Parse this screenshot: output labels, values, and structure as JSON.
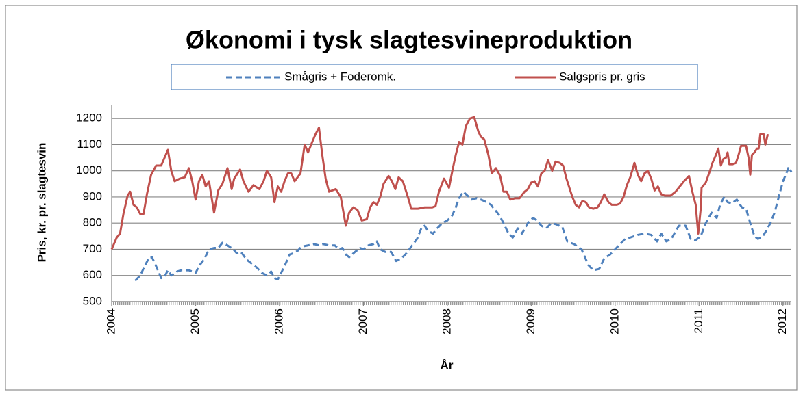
{
  "chart_data": {
    "type": "line",
    "title": "Økonomi i tysk slagtesvineproduktion",
    "xlabel": "År",
    "ylabel": "Pris, kr. pr. slagtesvin",
    "xlim": [
      2004,
      2012.1
    ],
    "xticks": [
      2004,
      2005,
      2006,
      2007,
      2008,
      2009,
      2010,
      2011,
      2012
    ],
    "ylim": [
      500,
      1250
    ],
    "yticks": [
      500,
      600,
      700,
      800,
      900,
      1000,
      1100,
      1200
    ],
    "grid": true,
    "legend": "top",
    "series": [
      {
        "name": "Smågris + Foderomk.",
        "color": "#4f81bd",
        "style": "dashed",
        "x": [
          2004.28,
          2004.34,
          2004.4,
          2004.45,
          2004.48,
          2004.53,
          2004.59,
          2004.63,
          2004.67,
          2004.71,
          2004.78,
          2004.83,
          2004.92,
          2005.0,
          2005.05,
          2005.1,
          2005.16,
          2005.22,
          2005.27,
          2005.32,
          2005.38,
          2005.45,
          2005.49,
          2005.54,
          2005.61,
          2005.67,
          2005.73,
          2005.79,
          2005.85,
          2005.9,
          2005.94,
          2005.98,
          2006.02,
          2006.08,
          2006.12,
          2006.17,
          2006.22,
          2006.26,
          2006.34,
          2006.41,
          2006.47,
          2006.52,
          2006.59,
          2006.66,
          2006.71,
          2006.75,
          2006.79,
          2006.83,
          2006.9,
          2006.96,
          2007.0,
          2007.06,
          2007.12,
          2007.16,
          2007.2,
          2007.26,
          2007.33,
          2007.39,
          2007.45,
          2007.5,
          2007.57,
          2007.64,
          2007.69,
          2007.73,
          2007.77,
          2007.83,
          2007.88,
          2007.94,
          2008.0,
          2008.06,
          2008.1,
          2008.14,
          2008.19,
          2008.24,
          2008.29,
          2008.35,
          2008.4,
          2008.47,
          2008.52,
          2008.57,
          2008.62,
          2008.67,
          2008.73,
          2008.78,
          2008.84,
          2008.89,
          2008.96,
          2009.02,
          2009.07,
          2009.12,
          2009.18,
          2009.24,
          2009.3,
          2009.37,
          2009.43,
          2009.51,
          2009.6,
          2009.68,
          2009.74,
          2009.81,
          2009.87,
          2009.94,
          2010.0,
          2010.06,
          2010.12,
          2010.18,
          2010.27,
          2010.35,
          2010.43,
          2010.5,
          2010.55,
          2010.61,
          2010.67,
          2010.76,
          2010.84,
          2010.9,
          2010.96,
          2011.02,
          2011.08,
          2011.15,
          2011.21,
          2011.25,
          2011.3,
          2011.34,
          2011.39,
          2011.45,
          2011.51,
          2011.56,
          2011.61,
          2011.66,
          2011.7,
          2011.75,
          2011.8,
          2011.85,
          2011.9,
          2011.95,
          2012.0,
          2012.04,
          2012.07,
          2012.1
        ],
        "values": [
          580,
          600,
          640,
          670,
          670,
          635,
          590,
          595,
          620,
          600,
          615,
          620,
          620,
          610,
          640,
          660,
          700,
          705,
          705,
          725,
          715,
          700,
          685,
          690,
          660,
          645,
          630,
          610,
          600,
          615,
          590,
          585,
          610,
          650,
          680,
          685,
          695,
          710,
          715,
          720,
          715,
          720,
          715,
          715,
          700,
          705,
          680,
          670,
          690,
          705,
          700,
          715,
          720,
          730,
          700,
          690,
          690,
          655,
          665,
          680,
          710,
          740,
          780,
          790,
          770,
          760,
          780,
          800,
          810,
          830,
          860,
          895,
          920,
          905,
          890,
          895,
          890,
          880,
          870,
          850,
          830,
          800,
          760,
          745,
          780,
          760,
          800,
          820,
          810,
          790,
          780,
          800,
          795,
          785,
          730,
          720,
          700,
          640,
          620,
          625,
          665,
          680,
          700,
          720,
          740,
          745,
          755,
          760,
          755,
          730,
          760,
          730,
          740,
          790,
          790,
          740,
          735,
          750,
          800,
          840,
          820,
          870,
          900,
          880,
          875,
          890,
          860,
          855,
          800,
          750,
          740,
          745,
          770,
          800,
          840,
          900,
          960,
          990,
          1015,
          995
        ]
      },
      {
        "name": "Salgspris pr. gris",
        "color": "#c0504d",
        "style": "solid",
        "x": [
          2004.0,
          2004.06,
          2004.1,
          2004.14,
          2004.19,
          2004.22,
          2004.26,
          2004.3,
          2004.34,
          2004.38,
          2004.42,
          2004.47,
          2004.53,
          2004.59,
          2004.63,
          2004.67,
          2004.71,
          2004.75,
          2004.81,
          2004.87,
          2004.92,
          2004.96,
          2005.0,
          2005.04,
          2005.08,
          2005.12,
          2005.16,
          2005.22,
          2005.27,
          2005.32,
          2005.38,
          2005.43,
          2005.46,
          2005.53,
          2005.57,
          2005.63,
          2005.69,
          2005.76,
          2005.81,
          2005.85,
          2005.9,
          2005.94,
          2005.98,
          2006.02,
          2006.06,
          2006.1,
          2006.14,
          2006.18,
          2006.25,
          2006.3,
          2006.34,
          2006.39,
          2006.43,
          2006.47,
          2006.51,
          2006.55,
          2006.59,
          2006.67,
          2006.73,
          2006.79,
          2006.83,
          2006.88,
          2006.93,
          2006.98,
          2007.04,
          2007.08,
          2007.12,
          2007.16,
          2007.2,
          2007.24,
          2007.3,
          2007.34,
          2007.38,
          2007.42,
          2007.47,
          2007.53,
          2007.57,
          2007.65,
          2007.73,
          2007.82,
          2007.86,
          2007.9,
          2007.96,
          2008.02,
          2008.06,
          2008.1,
          2008.14,
          2008.18,
          2008.22,
          2008.27,
          2008.32,
          2008.37,
          2008.4,
          2008.44,
          2008.49,
          2008.53,
          2008.58,
          2008.63,
          2008.67,
          2008.71,
          2008.75,
          2008.81,
          2008.86,
          2008.92,
          2008.96,
          2009.0,
          2009.04,
          2009.08,
          2009.12,
          2009.16,
          2009.2,
          2009.25,
          2009.29,
          2009.34,
          2009.38,
          2009.42,
          2009.49,
          2009.53,
          2009.57,
          2009.61,
          2009.65,
          2009.69,
          2009.74,
          2009.79,
          2009.83,
          2009.87,
          2009.92,
          2009.96,
          2010.02,
          2010.06,
          2010.1,
          2010.14,
          2010.18,
          2010.23,
          2010.27,
          2010.31,
          2010.35,
          2010.39,
          2010.43,
          2010.47,
          2010.51,
          2010.55,
          2010.59,
          2010.66,
          2010.72,
          2010.77,
          2010.82,
          2010.88,
          2010.92,
          2010.96,
          2010.99,
          2011.02,
          2011.03,
          2011.08,
          2011.13,
          2011.16,
          2011.2,
          2011.23,
          2011.26,
          2011.29,
          2011.32,
          2011.34,
          2011.36,
          2011.4,
          2011.44,
          2011.47,
          2011.5,
          2011.56,
          2011.59,
          2011.61,
          2011.63,
          2011.66,
          2011.69,
          2011.71,
          2011.73,
          2011.77,
          2011.79,
          2011.82
        ],
        "values": [
          700,
          745,
          760,
          835,
          905,
          920,
          870,
          860,
          835,
          835,
          910,
          985,
          1020,
          1020,
          1050,
          1080,
          1000,
          960,
          970,
          975,
          1010,
          960,
          890,
          960,
          985,
          940,
          960,
          840,
          925,
          950,
          1010,
          930,
          970,
          1005,
          960,
          920,
          945,
          930,
          960,
          1000,
          975,
          880,
          940,
          920,
          960,
          990,
          990,
          960,
          990,
          1100,
          1070,
          1110,
          1140,
          1165,
          1060,
          970,
          920,
          930,
          900,
          790,
          840,
          860,
          850,
          810,
          815,
          860,
          880,
          870,
          900,
          950,
          980,
          960,
          930,
          975,
          960,
          900,
          855,
          855,
          860,
          860,
          865,
          920,
          970,
          935,
          1000,
          1060,
          1110,
          1100,
          1170,
          1200,
          1205,
          1150,
          1130,
          1120,
          1060,
          990,
          1010,
          980,
          920,
          920,
          890,
          895,
          895,
          920,
          930,
          955,
          960,
          940,
          990,
          1000,
          1040,
          1000,
          1035,
          1030,
          1020,
          970,
          900,
          870,
          860,
          885,
          880,
          860,
          855,
          860,
          880,
          910,
          880,
          870,
          870,
          875,
          900,
          945,
          975,
          1030,
          985,
          960,
          990,
          1000,
          970,
          925,
          940,
          910,
          905,
          905,
          920,
          940,
          960,
          980,
          920,
          870,
          760,
          855,
          935,
          955,
          1000,
          1030,
          1060,
          1085,
          1020,
          1045,
          1050,
          1070,
          1025,
          1025,
          1030,
          1060,
          1095,
          1095,
          1050,
          985,
          1060,
          1070,
          1085,
          1085,
          1140,
          1140,
          1100,
          1140
        ]
      }
    ]
  }
}
